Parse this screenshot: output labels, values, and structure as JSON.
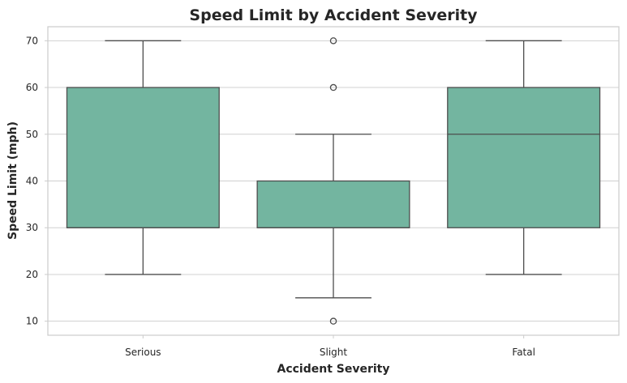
{
  "chart_data": {
    "type": "box",
    "title": "Speed Limit by Accident Severity",
    "xlabel": "Accident Severity",
    "ylabel": "Speed Limit (mph)",
    "ylim": [
      7,
      73
    ],
    "yticks": [
      10,
      20,
      30,
      40,
      50,
      60,
      70
    ],
    "grid": true,
    "box_color": "#73b5a0",
    "edge_color": "#4d4d4d",
    "categories": [
      "Serious",
      "Slight",
      "Fatal"
    ],
    "boxes": [
      {
        "category": "Serious",
        "whisker_low": 20,
        "q1": 30,
        "median": 30,
        "q3": 60,
        "whisker_high": 70,
        "outliers": []
      },
      {
        "category": "Slight",
        "whisker_low": 15,
        "q1": 30,
        "median": 30,
        "q3": 40,
        "whisker_high": 50,
        "outliers": [
          10,
          60,
          70
        ]
      },
      {
        "category": "Fatal",
        "whisker_low": 20,
        "q1": 30,
        "median": 50,
        "q3": 60,
        "whisker_high": 70,
        "outliers": []
      }
    ]
  }
}
